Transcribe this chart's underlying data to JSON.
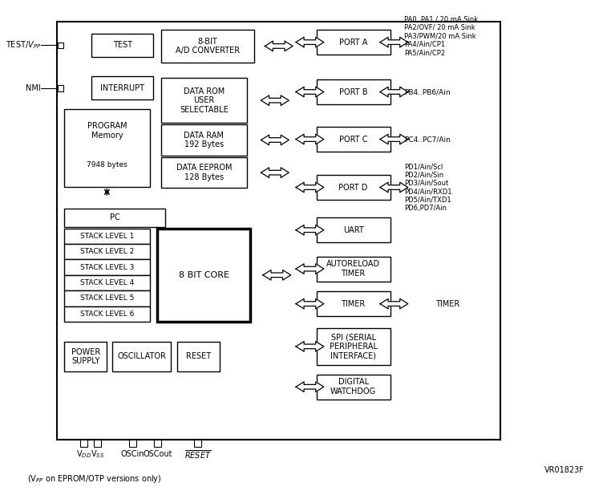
{
  "bg_color": "#ffffff",
  "fig_w": 7.67,
  "fig_h": 6.17,
  "footer": "VR01823F",
  "footnote": "(V$_{PP}$ on EPROM/OTP versions only)",
  "porta_label": "PA0..PA1 / 20 mA Sink\nPA2/OVF/ 20 mA Sink\nPA3/PWM/20 mA Sink\nPA4/Ain/CP1\nPA5/Ain/CP2",
  "portb_label": "PB4..PB6/Ain",
  "portc_label": "PC4..PC7/Ain",
  "portd_label": "PD1/Ain/Scl\nPD2/Ain/Sin\nPD3/Ain/Sout\nPD4/Ain/RXD1\nPD5/Ain/TXD1\nPD6,PD7/Ain",
  "timer_label": "TIMER"
}
